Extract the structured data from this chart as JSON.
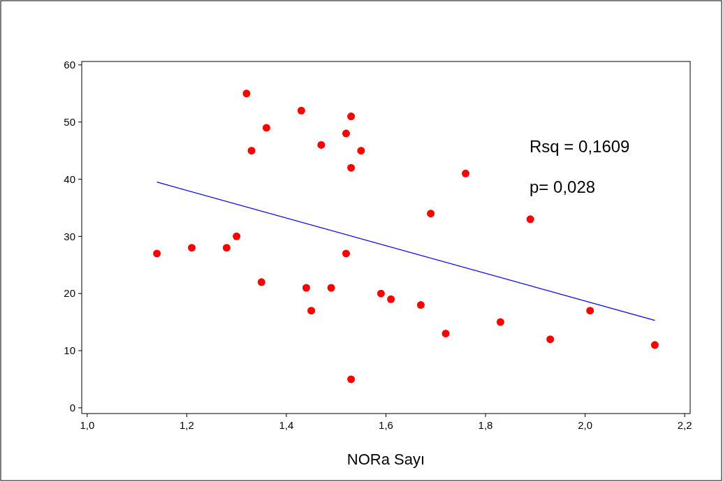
{
  "chart_data": {
    "type": "scatter",
    "xlabel": "NORa Sayı",
    "xlim": [
      0.989,
      2.211
    ],
    "ylim": [
      -1,
      60.6
    ],
    "xticks": [
      {
        "value": 1.0,
        "label": "1,0"
      },
      {
        "value": 1.2,
        "label": "1,2"
      },
      {
        "value": 1.4,
        "label": "1,4"
      },
      {
        "value": 1.6,
        "label": "1,6"
      },
      {
        "value": 1.8,
        "label": "1,8"
      },
      {
        "value": 2.0,
        "label": "2,0"
      },
      {
        "value": 2.2,
        "label": "2,2"
      }
    ],
    "yticks": [
      0,
      10,
      20,
      30,
      40,
      50,
      60
    ],
    "grid": false,
    "annotations": [
      "Rsq = 0,1609",
      "p= 0,028"
    ],
    "series": [
      {
        "marker": "circle",
        "color": "#ff0000",
        "x": [
          1.14,
          1.21,
          1.28,
          1.3,
          1.32,
          1.33,
          1.35,
          1.36,
          1.43,
          1.44,
          1.45,
          1.47,
          1.49,
          1.52,
          1.53,
          1.53,
          1.52,
          1.55,
          1.53,
          1.59,
          1.61,
          1.67,
          1.69,
          1.72,
          1.76,
          1.83,
          1.89,
          1.93,
          2.01,
          2.14
        ],
        "values": [
          27,
          28,
          28,
          30,
          55,
          45,
          22,
          49,
          52,
          21,
          17,
          46,
          21,
          48,
          51,
          42,
          27,
          45,
          5,
          20,
          19,
          18,
          34,
          13,
          41,
          15,
          33,
          12,
          17,
          11
        ]
      },
      {
        "type": "line",
        "color": "#0000ff",
        "x": [
          1.14,
          2.14
        ],
        "values": [
          39.5,
          15.3
        ]
      }
    ]
  }
}
